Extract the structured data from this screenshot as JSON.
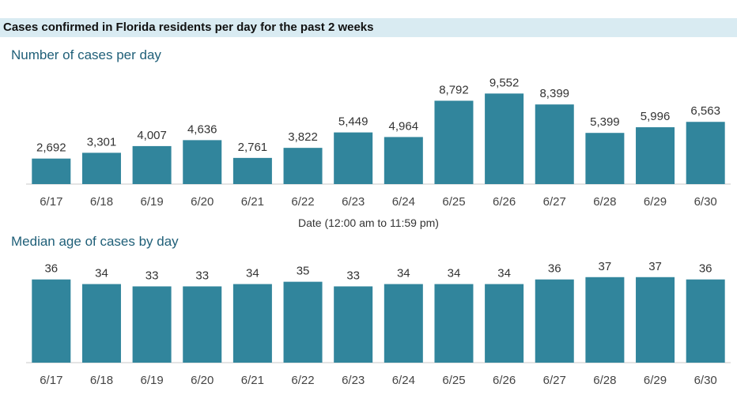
{
  "header": {
    "title": "Cases confirmed in Florida residents per day for the past 2 weeks"
  },
  "chart_data": [
    {
      "type": "bar",
      "title": "Number of cases per day",
      "xlabel": "Date (12:00 am to 11:59 pm)",
      "ylabel": "",
      "categories": [
        "6/17",
        "6/18",
        "6/19",
        "6/20",
        "6/21",
        "6/22",
        "6/23",
        "6/24",
        "6/25",
        "6/26",
        "6/27",
        "6/28",
        "6/29",
        "6/30"
      ],
      "values": [
        2692,
        3301,
        4007,
        4636,
        2761,
        3822,
        5449,
        4964,
        8792,
        9552,
        8399,
        5399,
        5996,
        6563
      ],
      "value_labels": [
        "2,692",
        "3,301",
        "4,007",
        "4,636",
        "2,761",
        "3,822",
        "5,449",
        "4,964",
        "8,792",
        "9,552",
        "8,399",
        "5,399",
        "5,996",
        "6,563"
      ],
      "ylim": [
        0,
        10000
      ],
      "grid": false,
      "color": "#31859c"
    },
    {
      "type": "bar",
      "title": "Median age of cases by day",
      "xlabel": "",
      "ylabel": "",
      "categories": [
        "6/17",
        "6/18",
        "6/19",
        "6/20",
        "6/21",
        "6/22",
        "6/23",
        "6/24",
        "6/25",
        "6/26",
        "6/27",
        "6/28",
        "6/29",
        "6/30"
      ],
      "values": [
        36,
        34,
        33,
        33,
        34,
        35,
        33,
        34,
        34,
        34,
        36,
        37,
        37,
        36
      ],
      "value_labels": [
        "36",
        "34",
        "33",
        "33",
        "34",
        "35",
        "33",
        "34",
        "34",
        "34",
        "36",
        "37",
        "37",
        "36"
      ],
      "ylim": [
        0,
        40
      ],
      "grid": false,
      "color": "#31859c"
    }
  ]
}
